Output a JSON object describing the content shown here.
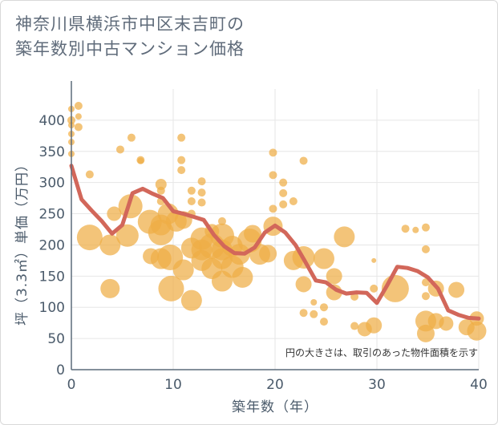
{
  "title_line1": "神奈川県横浜市中区末吉町の",
  "title_line2": "築年数別中古マンション価格",
  "colors": {
    "bubble": "#efad45",
    "line": "#d2675a",
    "grid": "#e6e6e6",
    "axis": "#5c6b7a",
    "text": "#4a5a6a"
  },
  "chart_data": {
    "type": "scatter",
    "title": "神奈川県横浜市中区末吉町の築年数別中古マンション価格",
    "xlabel": "築年数（年）",
    "ylabel": "坪（3.3㎡）単価（万円）",
    "xlim": [
      0,
      40
    ],
    "ylim": [
      0,
      450
    ],
    "xticks": [
      "0",
      "10",
      "20",
      "30",
      "40"
    ],
    "yticks": [
      "0",
      "50",
      "100",
      "150",
      "200",
      "250",
      "300",
      "350",
      "400"
    ],
    "grid": true,
    "note": "円の大きさは、取引のあった物件面積を示す",
    "series": [
      {
        "kind": "bubble",
        "points": [
          {
            "x": 0,
            "y": 418,
            "s": 4
          },
          {
            "x": 0,
            "y": 400,
            "s": 5
          },
          {
            "x": 0,
            "y": 392,
            "s": 4
          },
          {
            "x": 0,
            "y": 378,
            "s": 4
          },
          {
            "x": 0,
            "y": 365,
            "s": 4
          },
          {
            "x": 0,
            "y": 346,
            "s": 4
          },
          {
            "x": 0.7,
            "y": 423,
            "s": 5
          },
          {
            "x": 0.7,
            "y": 406,
            "s": 4
          },
          {
            "x": 0.7,
            "y": 389,
            "s": 5
          },
          {
            "x": 1.8,
            "y": 313,
            "s": 5
          },
          {
            "x": 1.8,
            "y": 212,
            "s": 16
          },
          {
            "x": 3.8,
            "y": 200,
            "s": 13
          },
          {
            "x": 3.8,
            "y": 130,
            "s": 12
          },
          {
            "x": 4.2,
            "y": 250,
            "s": 9
          },
          {
            "x": 4.8,
            "y": 353,
            "s": 5
          },
          {
            "x": 5.5,
            "y": 215,
            "s": 14
          },
          {
            "x": 5.8,
            "y": 262,
            "s": 15
          },
          {
            "x": 5.9,
            "y": 372,
            "s": 5
          },
          {
            "x": 6.8,
            "y": 336,
            "s": 5
          },
          {
            "x": 6.8,
            "y": 335,
            "s": 4
          },
          {
            "x": 7.7,
            "y": 237,
            "s": 15
          },
          {
            "x": 7.8,
            "y": 182,
            "s": 10
          },
          {
            "x": 8.8,
            "y": 297,
            "s": 7
          },
          {
            "x": 8.8,
            "y": 287,
            "s": 5
          },
          {
            "x": 8.8,
            "y": 270,
            "s": 5
          },
          {
            "x": 8.8,
            "y": 232,
            "s": 13
          },
          {
            "x": 8.8,
            "y": 220,
            "s": 16
          },
          {
            "x": 8.8,
            "y": 178,
            "s": 13
          },
          {
            "x": 9.5,
            "y": 250,
            "s": 13
          },
          {
            "x": 9.7,
            "y": 180,
            "s": 16
          },
          {
            "x": 9.8,
            "y": 130,
            "s": 16
          },
          {
            "x": 10.3,
            "y": 238,
            "s": 13
          },
          {
            "x": 10.8,
            "y": 372,
            "s": 5
          },
          {
            "x": 10.8,
            "y": 336,
            "s": 5
          },
          {
            "x": 10.8,
            "y": 320,
            "s": 5
          },
          {
            "x": 11.0,
            "y": 240,
            "s": 11
          },
          {
            "x": 11.0,
            "y": 160,
            "s": 13
          },
          {
            "x": 11.8,
            "y": 287,
            "s": 5
          },
          {
            "x": 11.8,
            "y": 270,
            "s": 5
          },
          {
            "x": 11.8,
            "y": 250,
            "s": 5
          },
          {
            "x": 11.8,
            "y": 195,
            "s": 13
          },
          {
            "x": 11.8,
            "y": 111,
            "s": 13
          },
          {
            "x": 12.8,
            "y": 302,
            "s": 5
          },
          {
            "x": 12.8,
            "y": 284,
            "s": 5
          },
          {
            "x": 12.8,
            "y": 268,
            "s": 5
          },
          {
            "x": 12.8,
            "y": 210,
            "s": 14
          },
          {
            "x": 12.8,
            "y": 192,
            "s": 13
          },
          {
            "x": 12.8,
            "y": 175,
            "s": 13
          },
          {
            "x": 13.8,
            "y": 222,
            "s": 9
          },
          {
            "x": 13.8,
            "y": 198,
            "s": 16
          },
          {
            "x": 13.8,
            "y": 162,
            "s": 13
          },
          {
            "x": 14.8,
            "y": 238,
            "s": 5
          },
          {
            "x": 14.8,
            "y": 215,
            "s": 15
          },
          {
            "x": 14.8,
            "y": 192,
            "s": 13
          },
          {
            "x": 14.8,
            "y": 178,
            "s": 13
          },
          {
            "x": 14.8,
            "y": 142,
            "s": 13
          },
          {
            "x": 15.8,
            "y": 198,
            "s": 13
          },
          {
            "x": 15.8,
            "y": 165,
            "s": 14
          },
          {
            "x": 16.5,
            "y": 185,
            "s": 13
          },
          {
            "x": 16.8,
            "y": 148,
            "s": 13
          },
          {
            "x": 17.5,
            "y": 207,
            "s": 15
          },
          {
            "x": 17.8,
            "y": 218,
            "s": 11
          },
          {
            "x": 18.5,
            "y": 185,
            "s": 13
          },
          {
            "x": 19.3,
            "y": 186,
            "s": 11
          },
          {
            "x": 19.8,
            "y": 348,
            "s": 5
          },
          {
            "x": 19.8,
            "y": 312,
            "s": 5
          },
          {
            "x": 19.8,
            "y": 258,
            "s": 5
          },
          {
            "x": 19.8,
            "y": 230,
            "s": 12
          },
          {
            "x": 20.8,
            "y": 300,
            "s": 5
          },
          {
            "x": 20.8,
            "y": 283,
            "s": 5
          },
          {
            "x": 20.8,
            "y": 265,
            "s": 5
          },
          {
            "x": 21.8,
            "y": 270,
            "s": 5
          },
          {
            "x": 21.8,
            "y": 175,
            "s": 12
          },
          {
            "x": 22.8,
            "y": 335,
            "s": 5
          },
          {
            "x": 22.8,
            "y": 180,
            "s": 14
          },
          {
            "x": 22.8,
            "y": 137,
            "s": 10
          },
          {
            "x": 22.8,
            "y": 91,
            "s": 5
          },
          {
            "x": 23.8,
            "y": 108,
            "s": 4
          },
          {
            "x": 23.8,
            "y": 89,
            "s": 5
          },
          {
            "x": 24.8,
            "y": 178,
            "s": 13
          },
          {
            "x": 24.8,
            "y": 100,
            "s": 5
          },
          {
            "x": 24.8,
            "y": 77,
            "s": 5
          },
          {
            "x": 25.8,
            "y": 150,
            "s": 10
          },
          {
            "x": 25.8,
            "y": 124,
            "s": 10
          },
          {
            "x": 26.8,
            "y": 213,
            "s": 13
          },
          {
            "x": 27.8,
            "y": 117,
            "s": 5
          },
          {
            "x": 27.8,
            "y": 70,
            "s": 5
          },
          {
            "x": 28.8,
            "y": 65,
            "s": 9
          },
          {
            "x": 29.7,
            "y": 175,
            "s": 3
          },
          {
            "x": 29.7,
            "y": 130,
            "s": 5
          },
          {
            "x": 29.7,
            "y": 71,
            "s": 10
          },
          {
            "x": 31.8,
            "y": 130,
            "s": 17
          },
          {
            "x": 32.8,
            "y": 226,
            "s": 5
          },
          {
            "x": 33.8,
            "y": 224,
            "s": 4
          },
          {
            "x": 34.8,
            "y": 228,
            "s": 5
          },
          {
            "x": 34.8,
            "y": 193,
            "s": 5
          },
          {
            "x": 34.8,
            "y": 140,
            "s": 5
          },
          {
            "x": 34.8,
            "y": 118,
            "s": 5
          },
          {
            "x": 34.8,
            "y": 78,
            "s": 13
          },
          {
            "x": 34.8,
            "y": 58,
            "s": 11
          },
          {
            "x": 35.8,
            "y": 130,
            "s": 10
          },
          {
            "x": 35.8,
            "y": 78,
            "s": 10
          },
          {
            "x": 36.8,
            "y": 74,
            "s": 9
          },
          {
            "x": 37.8,
            "y": 128,
            "s": 10
          },
          {
            "x": 38.8,
            "y": 68,
            "s": 10
          },
          {
            "x": 39.8,
            "y": 82,
            "s": 9
          },
          {
            "x": 39.8,
            "y": 62,
            "s": 12
          }
        ]
      },
      {
        "kind": "line",
        "x": [
          0,
          1,
          2,
          3,
          4,
          5,
          6,
          7,
          8,
          9,
          10,
          11,
          12,
          13,
          14,
          15,
          16,
          17,
          18,
          19,
          20,
          21,
          22,
          23,
          24,
          25,
          26,
          27,
          28,
          29,
          30,
          31,
          32,
          33,
          34,
          35,
          36,
          37,
          38,
          39,
          40
        ],
        "values": [
          327,
          273,
          255,
          238,
          218,
          232,
          283,
          290,
          282,
          275,
          254,
          250,
          245,
          240,
          216,
          198,
          187,
          186,
          196,
          220,
          231,
          220,
          200,
          172,
          143,
          140,
          128,
          122,
          124,
          123,
          107,
          135,
          165,
          163,
          158,
          148,
          130,
          95,
          88,
          83,
          82
        ]
      }
    ]
  }
}
